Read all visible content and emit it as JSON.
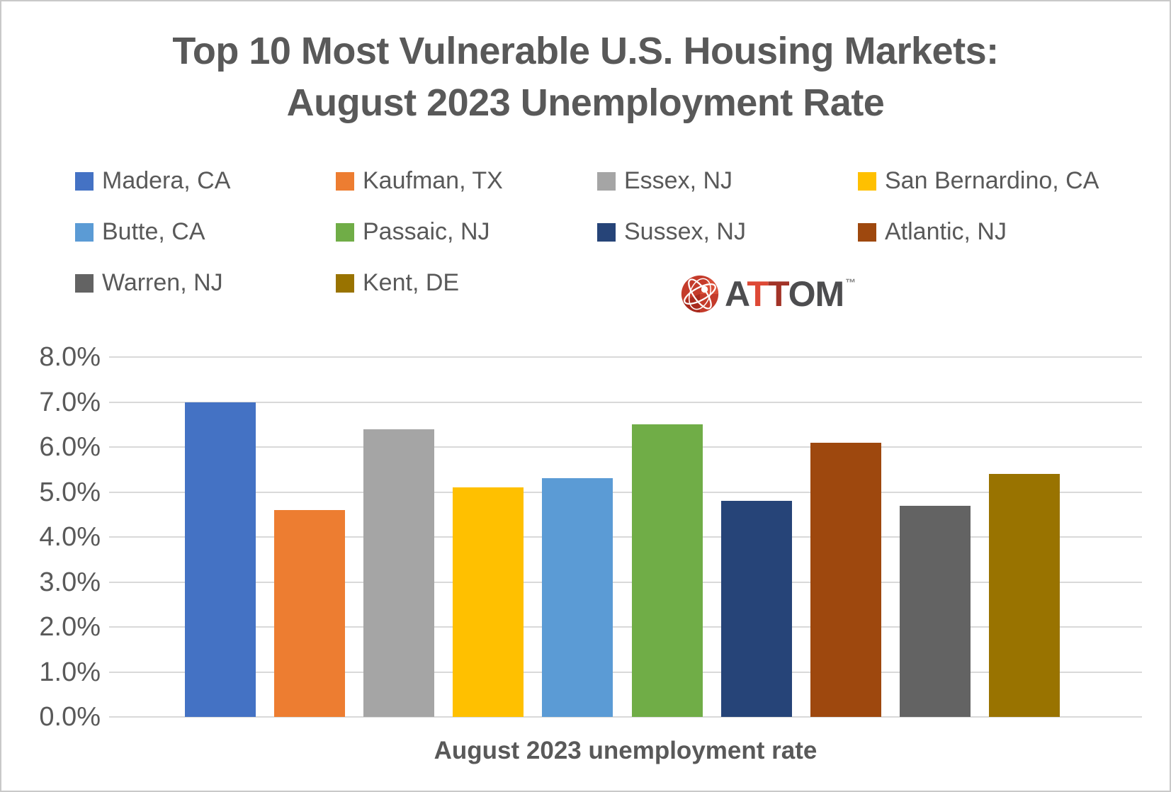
{
  "page": {
    "background": "#FFFFFF",
    "border_color": "#C9C9C9"
  },
  "title": {
    "line1": "Top 10 Most Vulnerable U.S. Housing Markets:",
    "line2": "August 2023 Unemployment Rate",
    "color": "#595959"
  },
  "legend": {
    "text_color": "#595959",
    "items": [
      {
        "label": "Madera, CA",
        "color": "#4472C4"
      },
      {
        "label": "Kaufman, TX",
        "color": "#ED7D31"
      },
      {
        "label": "Essex, NJ",
        "color": "#A5A5A5"
      },
      {
        "label": "San Bernardino, CA",
        "color": "#FFC000"
      },
      {
        "label": "Butte, CA",
        "color": "#5B9BD5"
      },
      {
        "label": "Passaic, NJ",
        "color": "#70AD47"
      },
      {
        "label": "Sussex, NJ",
        "color": "#264478"
      },
      {
        "label": "Atlantic, NJ",
        "color": "#9E480E"
      },
      {
        "label": "Warren, NJ",
        "color": "#636363"
      },
      {
        "label": "Kent, DE",
        "color": "#997300"
      }
    ]
  },
  "logo": {
    "icon": "attom-globe-icon",
    "icon_color": "#C43B2B",
    "letters": [
      {
        "ch": "A",
        "color": "#4D4D4F"
      },
      {
        "ch": "T",
        "color": "#DE4936"
      },
      {
        "ch": "T",
        "color": "#A23327"
      },
      {
        "ch": "O",
        "color": "#4D4D4F"
      },
      {
        "ch": "M",
        "color": "#4D4D4F"
      }
    ],
    "tm": "™"
  },
  "chart_data": {
    "type": "bar",
    "title": "Top 10 Most Vulnerable U.S. Housing Markets: August 2023 Unemployment Rate",
    "categories": [
      "Madera, CA",
      "Kaufman, TX",
      "Essex, NJ",
      "San Bernardino, CA",
      "Butte, CA",
      "Passaic, NJ",
      "Sussex, NJ",
      "Atlantic, NJ",
      "Warren, NJ",
      "Kent, DE"
    ],
    "values": [
      7.0,
      4.6,
      6.4,
      5.1,
      5.3,
      6.5,
      4.8,
      6.1,
      4.7,
      5.4
    ],
    "colors": [
      "#4472C4",
      "#ED7D31",
      "#A5A5A5",
      "#FFC000",
      "#5B9BD5",
      "#70AD47",
      "#264478",
      "#9E480E",
      "#636363",
      "#997300"
    ],
    "xlabel": "August 2023 unemployment rate",
    "ylabel": "",
    "ylim": [
      0,
      8
    ],
    "yticks": [
      "8.0%",
      "7.0%",
      "6.0%",
      "5.0%",
      "4.0%",
      "3.0%",
      "2.0%",
      "1.0%",
      "0.0%"
    ],
    "grid": true,
    "gridline_color": "#D9D9D9",
    "legend_position": "top",
    "value_format": "percent_1dp"
  }
}
